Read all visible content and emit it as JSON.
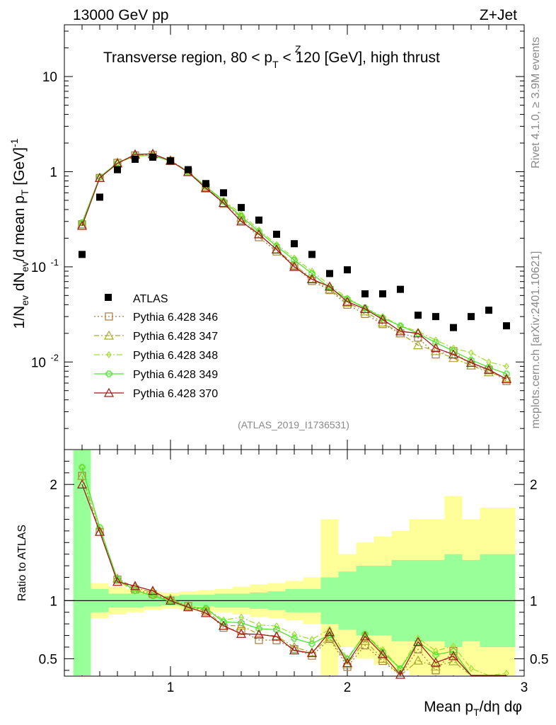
{
  "header": {
    "left": "13000 GeV pp",
    "right": "Z+Jet"
  },
  "side": {
    "rivet": "Rivet 4.1.0, ≥ 3.9M events",
    "site": "mcplots.cern.ch [arXiv:2401.10621]"
  },
  "chart_data": {
    "type": "line",
    "title": "Transverse region, 80 < p_T^Z < 120 [GeV], high thrust",
    "title_main": "Transverse region, 80 < p",
    "title_sup": "Z",
    "title_sub": "T",
    "title_rest": " < 120 [GeV], high thrust",
    "watermark": "(ATLAS_2019_I1736531)",
    "ylabel": "1/N_ev dN_ev/d mean p_T [GeV]^-1",
    "ylabel_parts": [
      "1/N",
      "ev",
      " dN",
      "ev",
      "/d mean p",
      "T",
      " [GeV]",
      "-1"
    ],
    "xlabel": "Mean p_T/dη dφ",
    "xlabel_parts": [
      "Mean p",
      "T",
      "/dη dφ"
    ],
    "ratio_ylabel": "Ratio to ATLAS",
    "xlim": [
      0.4,
      3.0
    ],
    "ylim": [
      0.0012,
      35
    ],
    "ratio_ylim": [
      0.35,
      2.3
    ],
    "x_ticks": [
      "1",
      "2",
      "3"
    ],
    "y_ticks": [
      "10",
      "1",
      "10^-1",
      "10^-2"
    ],
    "ratio_ticks": [
      "2",
      "1",
      "0.5"
    ],
    "x": [
      0.5,
      0.6,
      0.7,
      0.8,
      0.9,
      1.0,
      1.1,
      1.2,
      1.3,
      1.4,
      1.5,
      1.6,
      1.7,
      1.8,
      1.9,
      2.0,
      2.1,
      2.2,
      2.3,
      2.4,
      2.5,
      2.6,
      2.7,
      2.8,
      2.9
    ],
    "data": {
      "name": "ATLAS",
      "values": [
        0.135,
        0.54,
        1.05,
        1.35,
        1.42,
        1.3,
        1.05,
        0.75,
        0.6,
        0.42,
        0.31,
        0.22,
        0.175,
        0.135,
        0.085,
        0.093,
        0.052,
        0.052,
        0.058,
        0.031,
        0.03,
        0.023,
        0.03,
        0.035,
        0.024
      ],
      "band_inner": [
        1.8,
        0.1,
        0.06,
        0.06,
        0.05,
        0.04,
        0.05,
        0.05,
        0.06,
        0.06,
        0.07,
        0.08,
        0.1,
        0.1,
        0.2,
        0.25,
        0.3,
        0.3,
        0.35,
        0.35,
        0.35,
        0.4,
        0.35,
        0.4,
        0.4
      ],
      "band_outer": [
        1.9,
        0.15,
        0.12,
        0.1,
        0.08,
        0.07,
        0.08,
        0.09,
        0.1,
        0.12,
        0.14,
        0.15,
        0.17,
        0.2,
        0.7,
        0.4,
        0.5,
        0.55,
        0.6,
        0.7,
        0.7,
        0.9,
        0.7,
        0.8,
        0.8
      ]
    },
    "series": [
      {
        "name": "Pythia 6.428 346",
        "color": "#a87c3c",
        "dash": "2,3",
        "marker": "square",
        "values": [
          0.28,
          0.86,
          1.24,
          1.48,
          1.5,
          1.3,
          1.0,
          0.68,
          0.46,
          0.31,
          0.205,
          0.145,
          0.102,
          0.071,
          0.057,
          0.04,
          0.032,
          0.025,
          0.02,
          0.018,
          0.012,
          0.013,
          0.0092,
          0.0082,
          0.0063
        ]
      },
      {
        "name": "Pythia 6.428 347",
        "color": "#a8a830",
        "dash": "7,3,2,3",
        "marker": "triangle",
        "values": [
          0.28,
          0.86,
          1.25,
          1.5,
          1.52,
          1.32,
          1.0,
          0.69,
          0.47,
          0.33,
          0.22,
          0.153,
          0.105,
          0.075,
          0.058,
          0.042,
          0.034,
          0.026,
          0.02,
          0.015,
          0.013,
          0.011,
          0.0092,
          0.0078,
          0.0068
        ]
      },
      {
        "name": "Pythia 6.428 348",
        "color": "#a0e030",
        "dash": "8,3,2,3",
        "marker": "diamond",
        "values": [
          0.29,
          0.87,
          1.23,
          1.46,
          1.48,
          1.3,
          1.0,
          0.7,
          0.5,
          0.36,
          0.245,
          0.172,
          0.124,
          0.09,
          0.064,
          0.047,
          0.037,
          0.03,
          0.024,
          0.021,
          0.017,
          0.014,
          0.0125,
          0.01,
          0.009
        ]
      },
      {
        "name": "Pythia 6.428 349",
        "color": "#50e030",
        "dash": "",
        "marker": "cross",
        "values": [
          0.29,
          0.88,
          1.24,
          1.47,
          1.48,
          1.29,
          0.99,
          0.7,
          0.49,
          0.34,
          0.235,
          0.165,
          0.118,
          0.085,
          0.06,
          0.046,
          0.037,
          0.029,
          0.024,
          0.02,
          0.016,
          0.013,
          0.0105,
          0.0088,
          0.0075
        ]
      },
      {
        "name": "Pythia 6.428 370",
        "color": "#a01818",
        "dash": "",
        "marker": "triangle",
        "values": [
          0.27,
          0.86,
          1.22,
          1.52,
          1.54,
          1.3,
          0.99,
          0.67,
          0.47,
          0.3,
          0.22,
          0.152,
          0.1,
          0.074,
          0.062,
          0.043,
          0.036,
          0.028,
          0.021,
          0.02,
          0.014,
          0.012,
          0.0098,
          0.0083,
          0.0066
        ]
      }
    ]
  }
}
